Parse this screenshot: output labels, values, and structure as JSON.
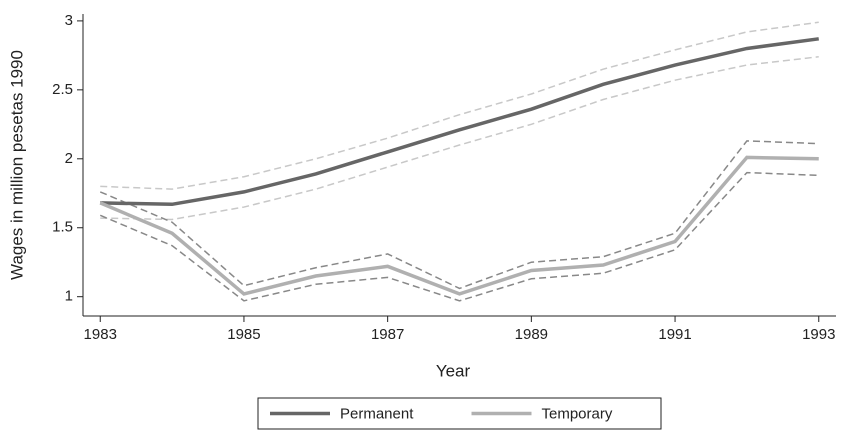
{
  "chart_data": {
    "type": "line",
    "x": [
      1983,
      1984,
      1985,
      1986,
      1987,
      1988,
      1989,
      1990,
      1991,
      1992,
      1993
    ],
    "xlabel": "Year",
    "ylabel": "Wages in million pesetas 1990",
    "xlim": [
      1982.76,
      1993.24
    ],
    "xticks": [
      1983,
      1985,
      1987,
      1989,
      1991,
      1993
    ],
    "ylim": [
      0.86,
      3.05
    ],
    "yticks": [
      1,
      1.5,
      2,
      2.5,
      3
    ],
    "grid": false,
    "legend": "bottom",
    "series": [
      {
        "color": "#c8c8c8",
        "dashed": true,
        "values": [
          1.8,
          1.78,
          1.87,
          2.0,
          2.15,
          2.32,
          2.47,
          2.65,
          2.79,
          2.92,
          2.99
        ]
      },
      {
        "color": "#c8c8c8",
        "dashed": true,
        "values": [
          1.57,
          1.56,
          1.65,
          1.78,
          1.94,
          2.1,
          2.25,
          2.43,
          2.57,
          2.68,
          2.74
        ]
      },
      {
        "color": "#888888",
        "dashed": true,
        "values": [
          1.76,
          1.54,
          1.08,
          1.21,
          1.31,
          1.06,
          1.25,
          1.29,
          1.46,
          2.13,
          2.11
        ]
      },
      {
        "color": "#888888",
        "dashed": true,
        "values": [
          1.59,
          1.37,
          0.97,
          1.09,
          1.14,
          0.97,
          1.13,
          1.17,
          1.34,
          1.9,
          1.88
        ]
      },
      {
        "name": "Permanent",
        "color": "#666666",
        "values": [
          1.68,
          1.67,
          1.76,
          1.89,
          2.05,
          2.21,
          2.36,
          2.54,
          2.68,
          2.8,
          2.87
        ]
      },
      {
        "name": "Temporary",
        "color": "#b0b0b0",
        "values": [
          1.68,
          1.46,
          1.02,
          1.15,
          1.22,
          1.02,
          1.19,
          1.23,
          1.4,
          2.01,
          2.0
        ]
      }
    ]
  }
}
